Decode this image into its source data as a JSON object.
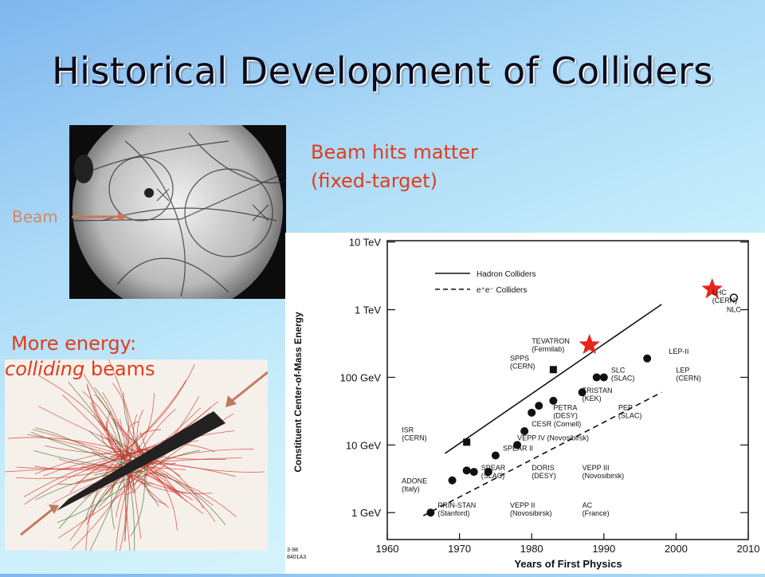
{
  "slide": {
    "title": "Historical Development of Colliders",
    "beam_label": "Beam",
    "fixed_target_line1": "Beam hits matter",
    "fixed_target_line2": "(fixed-target)",
    "colliding_line1": "More energy:",
    "colliding_italic": "colliding",
    "colliding_rest": " beams",
    "colors": {
      "red_text": "#e03c1d",
      "beam_label": "#d2896a",
      "arrow": "#c07a5a",
      "star": "#e8231c"
    }
  },
  "chart_data": {
    "type": "scatter",
    "xlabel": "Years of First Physics",
    "ylabel": "Constituent Center-of-Mass Energy",
    "xlim": [
      1960,
      2010
    ],
    "x_ticks": [
      "1960",
      "1970",
      "1980",
      "1990",
      "2000",
      "2010"
    ],
    "y_log_scale": true,
    "y_ticks": [
      "1 GeV",
      "10 GeV",
      "100 GeV",
      "1 TeV",
      "10 TeV"
    ],
    "legend": [
      "Hadron Colliders",
      "e⁺e⁻ Colliders"
    ],
    "footnote_1": "3-98",
    "footnote_2": "8401A3",
    "hadron_line": {
      "x": [
        1968,
        1998
      ],
      "y_gev": [
        7.5,
        1200
      ]
    },
    "ee_line": {
      "x": [
        1965,
        1998
      ],
      "y_gev": [
        0.9,
        60
      ]
    },
    "hadron_points": [
      {
        "x": 1971,
        "y_gev": 11,
        "marker": "square"
      },
      {
        "x": 1983,
        "y_gev": 130,
        "marker": "square"
      }
    ],
    "ee_points": [
      {
        "x": 1966,
        "y_gev": 1
      },
      {
        "x": 1969,
        "y_gev": 3
      },
      {
        "x": 1971,
        "y_gev": 4.2
      },
      {
        "x": 1972,
        "y_gev": 4
      },
      {
        "x": 1974,
        "y_gev": 4
      },
      {
        "x": 1975,
        "y_gev": 7
      },
      {
        "x": 1978,
        "y_gev": 10
      },
      {
        "x": 1979,
        "y_gev": 16
      },
      {
        "x": 1980,
        "y_gev": 30
      },
      {
        "x": 1981,
        "y_gev": 38
      },
      {
        "x": 1983,
        "y_gev": 45
      },
      {
        "x": 1987,
        "y_gev": 60
      },
      {
        "x": 1989,
        "y_gev": 100
      },
      {
        "x": 1990,
        "y_gev": 100
      },
      {
        "x": 1996,
        "y_gev": 190
      }
    ],
    "future_points": [
      {
        "x": 2008,
        "y_gev": 1500,
        "marker": "open-circle",
        "label": "NLC"
      }
    ],
    "stars": [
      {
        "x": 1988,
        "y_gev": 300
      },
      {
        "x": 2005,
        "y_gev": 2000
      }
    ],
    "annotations": [
      {
        "lines": [
          "TEVATRON",
          "(Fermilab)"
        ],
        "x": 1980,
        "y_gev": 270
      },
      {
        "lines": [
          "SPPS",
          "(CERN)"
        ],
        "x": 1977,
        "y_gev": 150
      },
      {
        "lines": [
          "LEP-II"
        ],
        "x": 1999,
        "y_gev": 190
      },
      {
        "lines": [
          "SLC",
          "(SLAC)"
        ],
        "x": 1991,
        "y_gev": 100
      },
      {
        "lines": [
          "LEP",
          "(CERN)"
        ],
        "x": 2000,
        "y_gev": 100
      },
      {
        "lines": [
          "TRISTAN",
          "(KEK)"
        ],
        "x": 1987,
        "y_gev": 50
      },
      {
        "lines": [
          "PETRA",
          "(DESY)"
        ],
        "x": 1983,
        "y_gev": 28
      },
      {
        "lines": [
          "PEP",
          "(SLAC)"
        ],
        "x": 1992,
        "y_gev": 28
      },
      {
        "lines": [
          "CESR (Cornell)"
        ],
        "x": 1980,
        "y_gev": 16
      },
      {
        "lines": [
          "VEPP IV (Novosibirsk)"
        ],
        "x": 1978,
        "y_gev": 10
      },
      {
        "lines": [
          "SPEAR II"
        ],
        "x": 1976,
        "y_gev": 7
      },
      {
        "lines": [
          "ISR",
          "(CERN)"
        ],
        "x": 1962,
        "y_gev": 13
      },
      {
        "lines": [
          "SPEAR",
          "(SLAC)"
        ],
        "x": 1973,
        "y_gev": 3.6
      },
      {
        "lines": [
          "DORIS",
          "(DESY)"
        ],
        "x": 1980,
        "y_gev": 3.6
      },
      {
        "lines": [
          "VEPP III",
          "(Novosibirsk)"
        ],
        "x": 1987,
        "y_gev": 3.6
      },
      {
        "lines": [
          "ADONE",
          "(Italy)"
        ],
        "x": 1962,
        "y_gev": 2.3
      },
      {
        "lines": [
          "PRIN-STAN",
          "(Stanford)"
        ],
        "x": 1967,
        "y_gev": 1
      },
      {
        "lines": [
          "VEPP II",
          "(Novosibirsk)"
        ],
        "x": 1977,
        "y_gev": 1
      },
      {
        "lines": [
          "AC",
          "(France)"
        ],
        "x": 1987,
        "y_gev": 1
      },
      {
        "lines": [
          "LHC",
          "(CERN)"
        ],
        "x": 2005,
        "y_gev": 1400
      }
    ]
  }
}
